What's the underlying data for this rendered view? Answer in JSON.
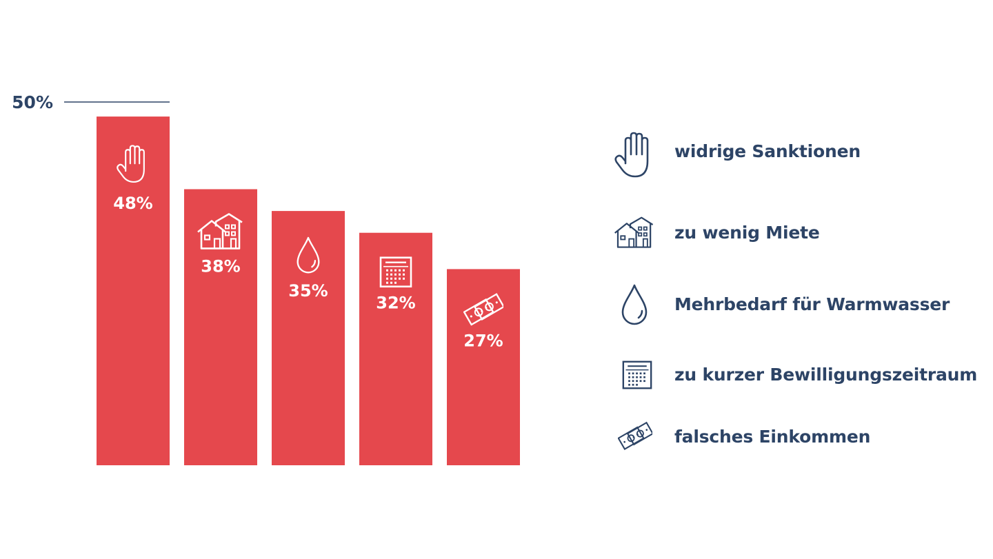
{
  "colors": {
    "bar": "#e5484d",
    "text": "#2d4466",
    "bar_text": "#ffffff"
  },
  "chart_data": {
    "type": "bar",
    "categories": [
      "widrige Sanktionen",
      "zu wenig Miete",
      "Mehrbedarf für Warmwasser",
      "zu kurzer Bewilligungszeitraum",
      "falsches Einkommen"
    ],
    "values": [
      48,
      38,
      35,
      32,
      27
    ],
    "data_labels": [
      "48%",
      "38%",
      "35%",
      "32%",
      "27%"
    ],
    "icons": [
      "hand-icon",
      "houses-icon",
      "water-drop-icon",
      "calendar-icon",
      "money-icon"
    ],
    "ylim": [
      0,
      50
    ],
    "y_tick_label": "50%",
    "title": "",
    "xlabel": "",
    "ylabel": "",
    "legend_position": "right",
    "grid": false
  }
}
